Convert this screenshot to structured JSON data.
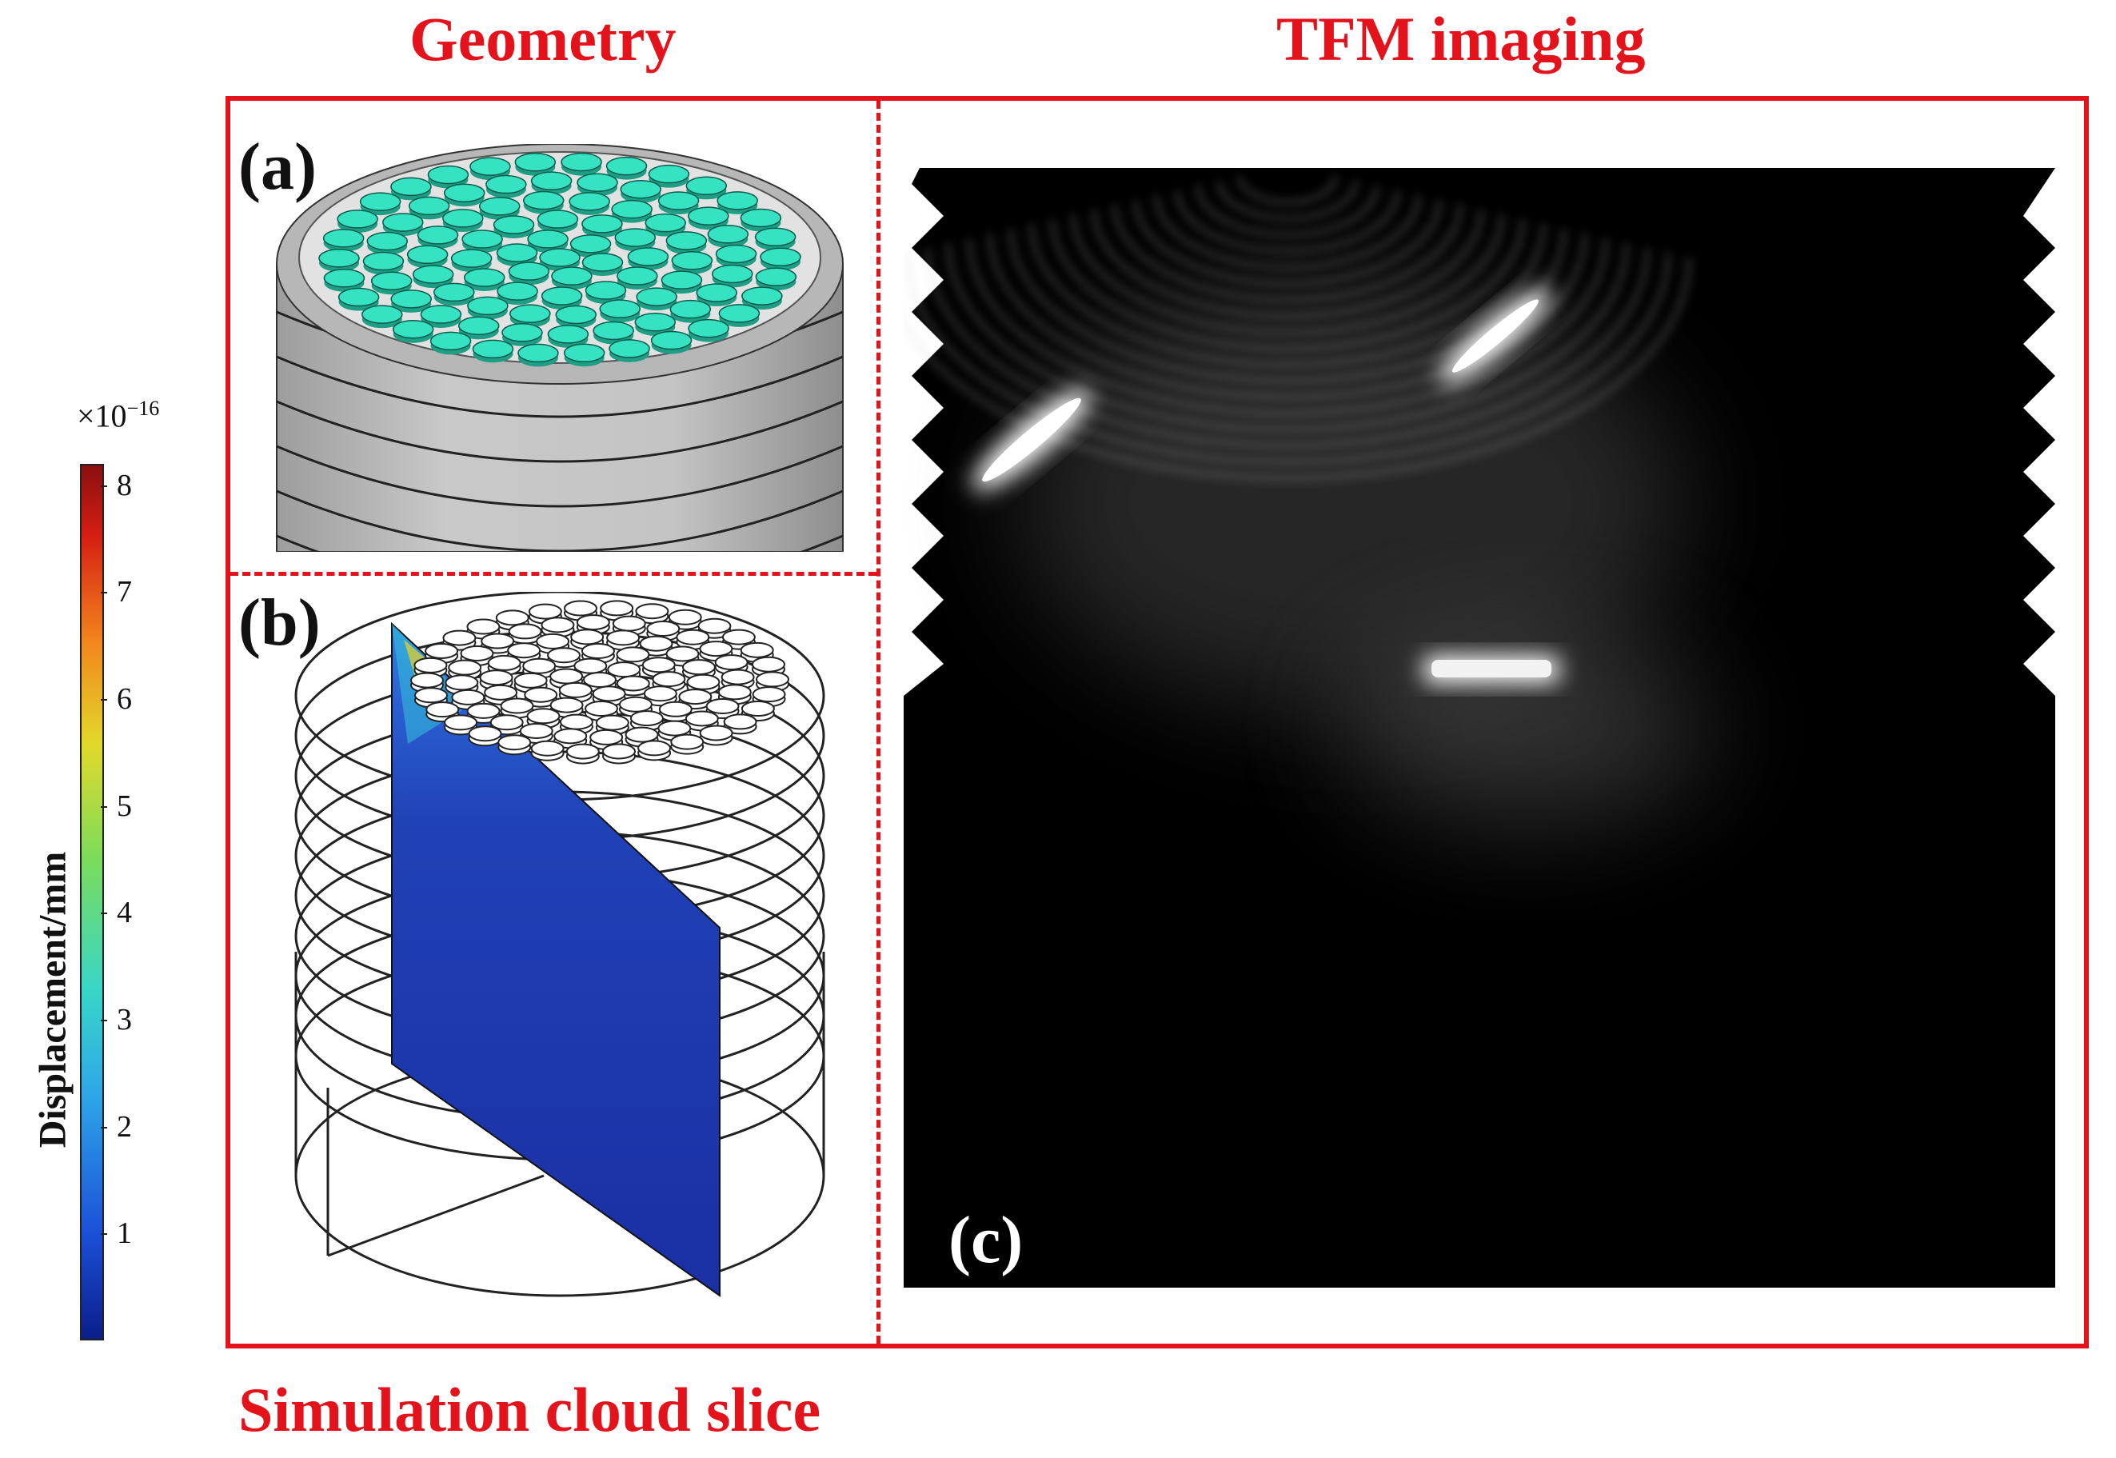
{
  "headings": {
    "geometry": "Geometry",
    "tfm": "TFM imaging",
    "simulation": "Simulation cloud slice"
  },
  "panels": {
    "a": "(a)",
    "b": "(b)",
    "c": "(c)"
  },
  "colorbar": {
    "label": "Displacement/mm",
    "exponent_base": "×10",
    "exponent_power": "−16",
    "ticks": [
      "1",
      "2",
      "3",
      "4",
      "5",
      "6",
      "7",
      "8"
    ],
    "min": 0,
    "max": 8.2
  },
  "colors": {
    "frame": "#e3121b",
    "element": "#35e3c2",
    "slice": "#1a2fa3"
  }
}
